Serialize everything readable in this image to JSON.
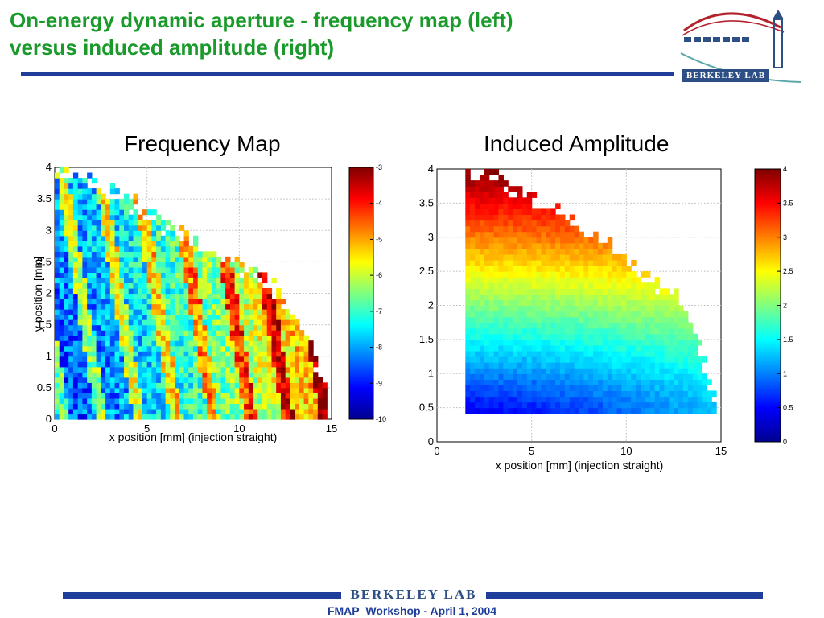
{
  "slide": {
    "title_line1": "On-energy dynamic aperture - frequency map (left)",
    "title_line2": "versus induced amplitude (right)",
    "logo_text": "BERKELEY LAB",
    "footer_logo_text": "BERKELEY LAB",
    "footer": "FMAP_Workshop - April 1, 2004"
  },
  "colors": {
    "title_green": "#1a9a2a",
    "rule_blue": "#1f3e9a",
    "jet_colormap": [
      "#00008f",
      "#0000ff",
      "#00ffff",
      "#ffff00",
      "#ff0000",
      "#800000"
    ]
  },
  "chart_data": [
    {
      "type": "heatmap",
      "title": "Frequency Map",
      "xlabel": "x position [mm] (injection straight)",
      "ylabel": "y position [mm]",
      "xlim": [
        0,
        15
      ],
      "ylim": [
        0,
        4
      ],
      "xticks": [
        "0",
        "5",
        "10",
        "15"
      ],
      "yticks": [
        "0",
        "0.5",
        "1",
        "1.5",
        "2",
        "2.5",
        "3",
        "3.5",
        "4"
      ],
      "grid": true,
      "colorbar": {
        "min": -10,
        "max": -3,
        "ticks": [
          "-3",
          "-4",
          "-5",
          "-6",
          "-7",
          "-8",
          "-9",
          "-10"
        ],
        "colormap": "jet"
      },
      "boundary_x": [
        0,
        1.5,
        3,
        4.5,
        6,
        7.5,
        9,
        10.5,
        12,
        13.5,
        14.8
      ],
      "boundary_y": [
        3.95,
        3.8,
        3.62,
        3.38,
        3.1,
        2.85,
        2.6,
        2.35,
        2.05,
        1.4,
        0.4
      ]
    },
    {
      "type": "heatmap",
      "title": "Induced Amplitude",
      "xlabel": "x position [mm] (injection straight)",
      "ylabel": "",
      "xlim": [
        0,
        15
      ],
      "ylim": [
        0,
        4
      ],
      "xticks": [
        "0",
        "5",
        "10",
        "15"
      ],
      "yticks": [
        "0",
        "0.5",
        "1",
        "1.5",
        "2",
        "2.5",
        "3",
        "3.5",
        "4"
      ],
      "grid": true,
      "colorbar": {
        "min": 0,
        "max": 4,
        "ticks": [
          "4",
          "3.5",
          "3",
          "2.5",
          "2",
          "1.5",
          "1",
          "0.5",
          "0"
        ],
        "colormap": "jet"
      },
      "x_start": 1.5,
      "y_start": 0.4,
      "boundary_x": [
        1.5,
        3,
        4.5,
        6,
        7.5,
        9,
        10.5,
        11.5,
        12.5,
        13.5,
        14.8
      ],
      "boundary_y": [
        3.95,
        3.85,
        3.65,
        3.42,
        3.2,
        2.95,
        2.62,
        2.25,
        2.25,
        1.6,
        0.55
      ]
    }
  ]
}
